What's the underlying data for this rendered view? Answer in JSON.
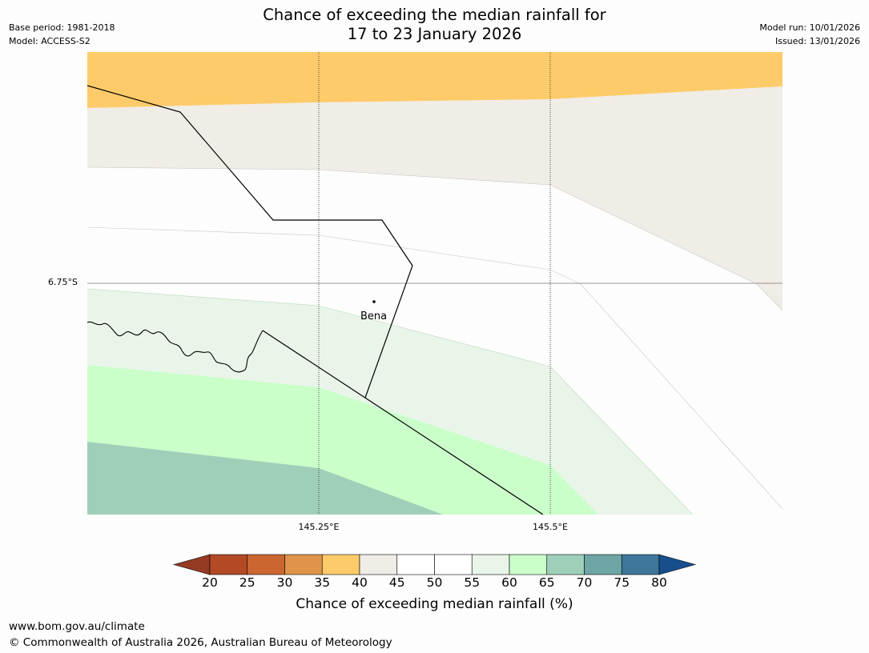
{
  "title": {
    "line1": "Chance of exceeding the median rainfall for",
    "line2": "17 to 23 January 2026"
  },
  "meta_left": {
    "base_period": "Base period: 1981-2018",
    "model": "Model: ACCESS-S2"
  },
  "meta_right": {
    "model_run": "Model run: 10/01/2026",
    "issued": "Issued: 13/01/2026"
  },
  "map": {
    "lat_labels": [
      "6.75°S"
    ],
    "lon_labels": [
      "145.25°E",
      "145.5°E"
    ],
    "place": {
      "name": "Bena",
      "marker": "dot"
    },
    "colors": {
      "band_35_40": "#fecb6a",
      "band_40_45": "#f0ece6",
      "band_45_55": "#fdfdfd",
      "band_55_60": "#eaf5ea",
      "band_60_65": "#caffca",
      "band_65_70": "#9ed0b9"
    }
  },
  "colorbar": {
    "label": "Chance of exceeding median rainfall (%)",
    "ticks": [
      "20",
      "25",
      "30",
      "35",
      "40",
      "45",
      "50",
      "55",
      "60",
      "65",
      "70",
      "75",
      "80"
    ],
    "colors": [
      "#b34a25",
      "#cc6631",
      "#e0944a",
      "#fecb6a",
      "#f0ece6",
      "#ffffff",
      "#ffffff",
      "#eaf5ea",
      "#caffca",
      "#9ed0b9",
      "#6ea6a6",
      "#3e779a"
    ],
    "low_extend_color": "#953b24",
    "high_extend_color": "#174f8c"
  },
  "footer": {
    "url": "www.bom.gov.au/climate",
    "copyright": "© Commonwealth of Australia 2026, Australian Bureau of Meteorology"
  }
}
